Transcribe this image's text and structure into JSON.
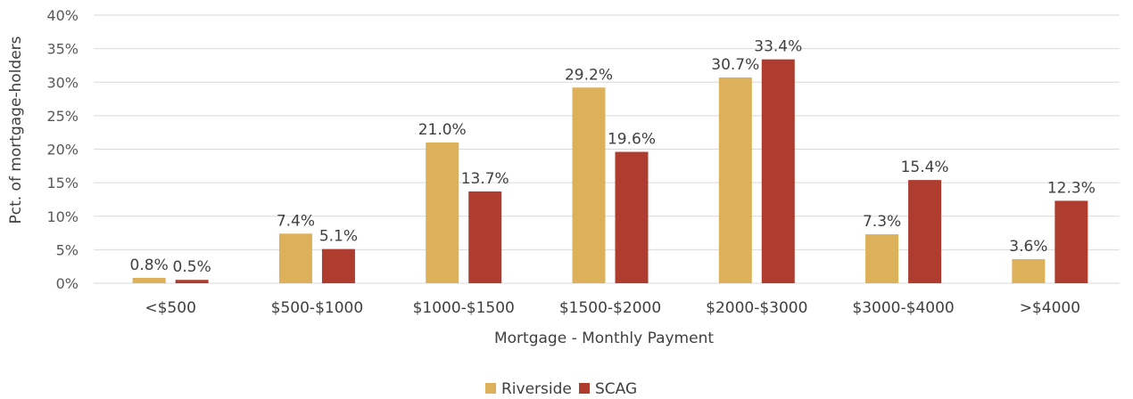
{
  "chart_data": {
    "type": "bar",
    "categories": [
      "<$500",
      "$500-$1000",
      "$1000-$1500",
      "$1500-$2000",
      "$2000-$3000",
      "$3000-$4000",
      ">$4000"
    ],
    "series": [
      {
        "name": "Riverside",
        "color": "#DDB05A",
        "values": [
          0.8,
          7.4,
          21.0,
          29.2,
          30.7,
          7.3,
          3.6
        ],
        "labels": [
          "0.8%",
          "7.4%",
          "21.0%",
          "29.2%",
          "30.7%",
          "7.3%",
          "3.6%"
        ]
      },
      {
        "name": "SCAG",
        "color": "#AE3C2F",
        "values": [
          0.5,
          5.1,
          13.7,
          19.6,
          33.4,
          15.4,
          12.3
        ],
        "labels": [
          "0.5%",
          "5.1%",
          "13.7%",
          "19.6%",
          "33.4%",
          "15.4%",
          "12.3%"
        ]
      }
    ],
    "xlabel": "Mortgage - Monthly Payment",
    "ylabel": "Pct. of mortgage-holders",
    "ylim": [
      0,
      40
    ],
    "yticks": [
      "0%",
      "5%",
      "10%",
      "15%",
      "20%",
      "25%",
      "30%",
      "35%",
      "40%"
    ],
    "grid": true,
    "legend_position": "bottom"
  }
}
